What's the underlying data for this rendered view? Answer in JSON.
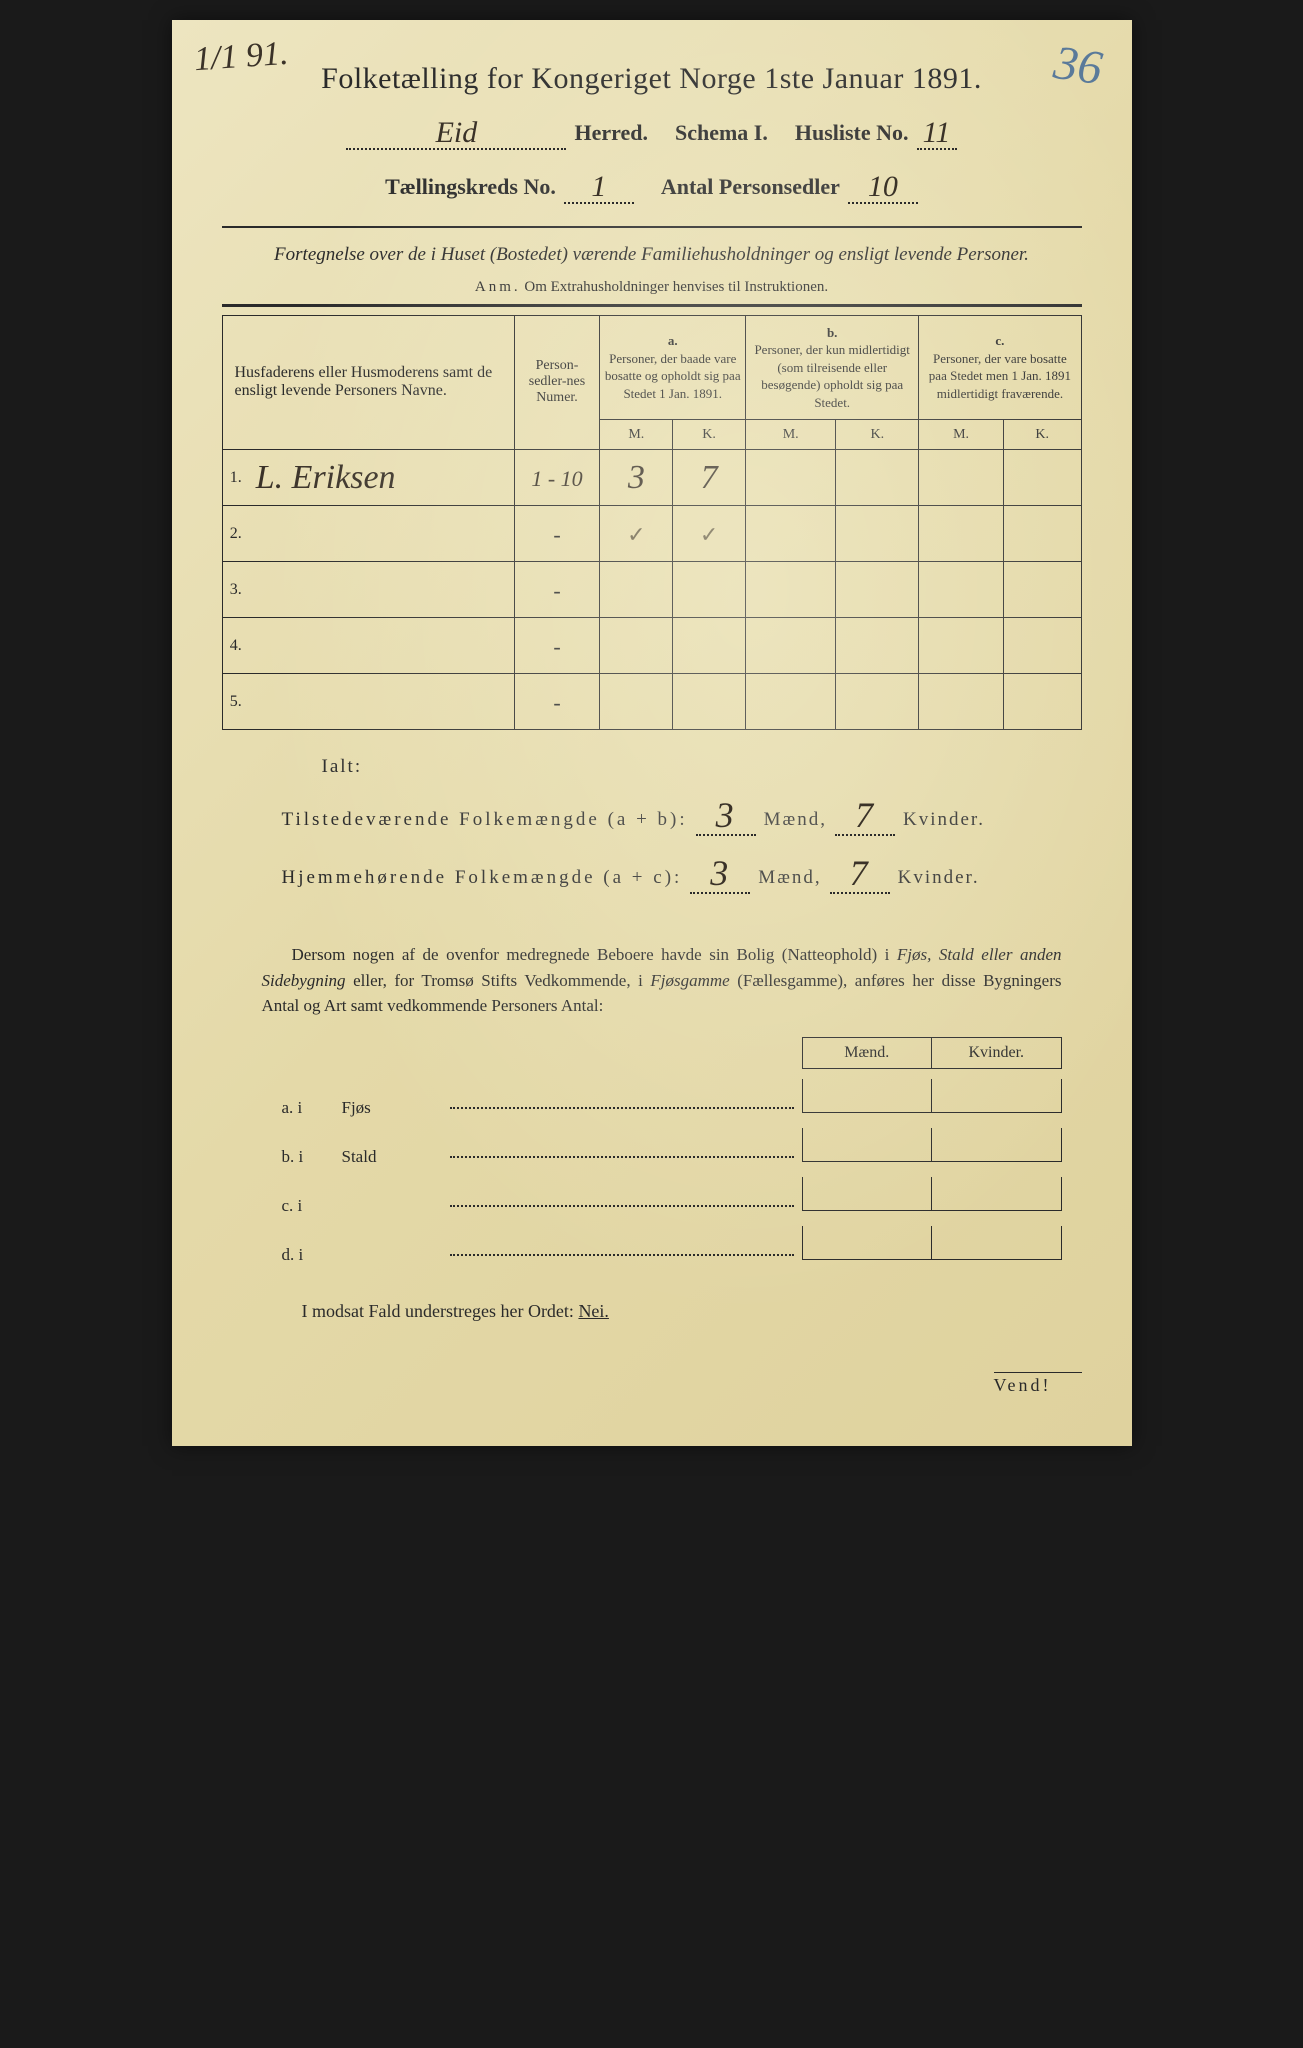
{
  "corner": {
    "topleft": "1/1 91.",
    "topright": "36"
  },
  "title": "Folketælling for Kongeriget Norge 1ste Januar 1891.",
  "header": {
    "herred_value": "Eid",
    "herred_label": "Herred.",
    "schema_label": "Schema I.",
    "husliste_label": "Husliste No.",
    "husliste_value": "11",
    "kreds_label": "Tællingskreds No.",
    "kreds_value": "1",
    "personsedler_label": "Antal Personsedler",
    "personsedler_value": "10"
  },
  "subtitle": "Fortegnelse over de i Huset (Bostedet) værende Familiehusholdninger og ensligt levende Personer.",
  "anm": "Anm. Om Extrahusholdninger henvises til Instruktionen.",
  "table": {
    "col1": "Husfaderens eller Husmoderens samt de ensligt levende Personers Navne.",
    "col2": "Person-sedler-nes Numer.",
    "colA_hdr": "a.",
    "colA": "Personer, der baade vare bosatte og opholdt sig paa Stedet 1 Jan. 1891.",
    "colB_hdr": "b.",
    "colB": "Personer, der kun midlertidigt (som tilreisende eller besøgende) opholdt sig paa Stedet.",
    "colC_hdr": "c.",
    "colC": "Personer, der vare bosatte paa Stedet men 1 Jan. 1891 midlertidigt fraværende.",
    "M": "M.",
    "K": "K.",
    "rows": [
      {
        "n": "1.",
        "name": "L. Eriksen",
        "num": "1 - 10",
        "aM": "3",
        "aK": "7",
        "bM": "",
        "bK": "",
        "cM": "",
        "cK": ""
      },
      {
        "n": "2.",
        "name": "",
        "num": "-",
        "aM": "✓",
        "aK": "✓",
        "bM": "",
        "bK": "",
        "cM": "",
        "cK": ""
      },
      {
        "n": "3.",
        "name": "",
        "num": "-",
        "aM": "",
        "aK": "",
        "bM": "",
        "bK": "",
        "cM": "",
        "cK": ""
      },
      {
        "n": "4.",
        "name": "",
        "num": "-",
        "aM": "",
        "aK": "",
        "bM": "",
        "bK": "",
        "cM": "",
        "cK": ""
      },
      {
        "n": "5.",
        "name": "",
        "num": "-",
        "aM": "",
        "aK": "",
        "bM": "",
        "bK": "",
        "cM": "",
        "cK": ""
      }
    ]
  },
  "ialt": {
    "label": "Ialt:",
    "line1_label": "Tilstedeværende Folkemængde (a + b):",
    "line2_label": "Hjemmehørende Folkemængde (a + c):",
    "maend": "Mænd,",
    "kvinder": "Kvinder.",
    "l1M": "3",
    "l1K": "7",
    "l2M": "3",
    "l2K": "7"
  },
  "para": "Dersom nogen af de ovenfor medregnede Beboere havde sin Bolig (Natteophold) i Fjøs, Stald eller anden Sidebygning eller, for Tromsø Stifts Vedkommende, i Fjøsgamme (Fællesgamme), anføres her disse Bygningers Antal og Art samt vedkommende Personers Antal:",
  "sublist": {
    "maend": "Mænd.",
    "kvinder": "Kvinder.",
    "rows": [
      {
        "lbl": "a.  i",
        "name": "Fjøs"
      },
      {
        "lbl": "b.  i",
        "name": "Stald"
      },
      {
        "lbl": "c.  i",
        "name": ""
      },
      {
        "lbl": "d.  i",
        "name": ""
      }
    ]
  },
  "nei": {
    "text": "I modsat Fald understreges her Ordet:",
    "word": "Nei."
  },
  "vend": "Vend!"
}
